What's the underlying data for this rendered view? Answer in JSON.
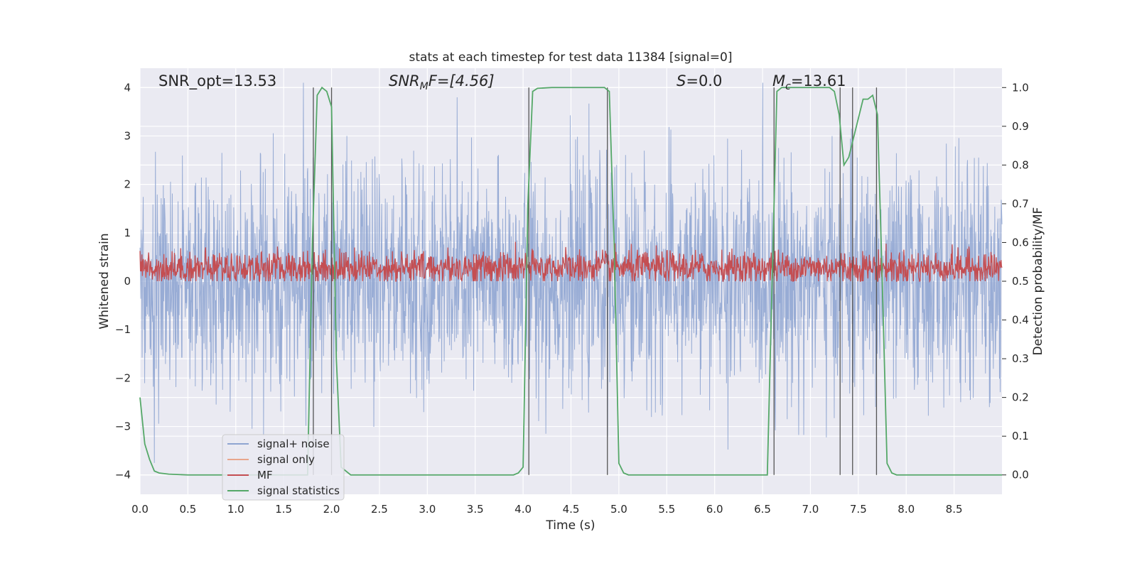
{
  "chart_data": {
    "type": "line",
    "title": "stats at each timestep for test data 11384 [signal=0]",
    "xlabel": "Time (s)",
    "ylabel": "Whitened strain",
    "ylabel_right": "Detection probability/MF",
    "xlim": [
      0,
      9.0
    ],
    "ylim": [
      -4.4,
      4.4
    ],
    "ylim_right": [
      -0.05,
      1.05
    ],
    "x_ticks": [
      "0.0",
      "0.5",
      "1.0",
      "1.5",
      "2.0",
      "2.5",
      "3.0",
      "3.5",
      "4.0",
      "4.5",
      "5.0",
      "5.5",
      "6.0",
      "6.5",
      "7.0",
      "7.5",
      "8.0",
      "8.5"
    ],
    "y_ticks": [
      "4",
      "3",
      "2",
      "1",
      "0",
      "−1",
      "−2",
      "−3",
      "−4"
    ],
    "y_right_ticks": [
      "1.0",
      "0.9",
      "0.8",
      "0.7",
      "0.6",
      "0.5",
      "0.4",
      "0.3",
      "0.2",
      "0.1",
      "0.0"
    ],
    "grid": true,
    "legend_position": "lower-left",
    "annotations": {
      "snr_opt": "SNR_opt=13.53",
      "snr_mf_main": "SNR",
      "snr_mf_sub": "M",
      "snr_mf_rest": "F=[4.56]",
      "s_main": "S",
      "s_rest": "=0.0",
      "mc_main": "M",
      "mc_sub": "c",
      "mc_rest": "=13.61"
    },
    "series": [
      {
        "name": "signal+ noise",
        "color": "#8fa5d1",
        "description_values": "random whitened noise, amplitude about ±2 to ±4"
      },
      {
        "name": "signal only",
        "color": "#e8a68c",
        "values": []
      },
      {
        "name": "MF",
        "color": "#c44e52",
        "description_values": "noisy band between 0 and 0.6 on right axis (centered near 0.53)"
      },
      {
        "name": "signal statistics",
        "color": "#55a868",
        "x": [
          0.0,
          0.05,
          0.1,
          0.15,
          0.2,
          0.3,
          0.5,
          1.0,
          1.5,
          1.75,
          1.8,
          1.85,
          1.9,
          1.95,
          2.0,
          2.05,
          2.1,
          2.2,
          3.0,
          3.9,
          3.95,
          4.0,
          4.05,
          4.1,
          4.15,
          4.3,
          4.8,
          4.85,
          4.9,
          4.95,
          5.0,
          5.05,
          5.1,
          6.55,
          6.6,
          6.65,
          6.7,
          6.75,
          7.2,
          7.25,
          7.3,
          7.35,
          7.4,
          7.45,
          7.5,
          7.55,
          7.6,
          7.65,
          7.7,
          7.75,
          7.8,
          7.85,
          7.9,
          8.0,
          9.0
        ],
        "values": [
          0.2,
          0.08,
          0.04,
          0.01,
          0.005,
          0.002,
          0.0,
          0.0,
          0.0,
          0.0,
          0.6,
          0.98,
          1.0,
          0.99,
          0.95,
          0.3,
          0.02,
          0.0,
          0.0,
          0.0,
          0.005,
          0.02,
          0.7,
          0.99,
          0.998,
          1.0,
          1.0,
          1.0,
          0.99,
          0.6,
          0.03,
          0.005,
          0.0,
          0.0,
          0.5,
          0.99,
          1.0,
          1.0,
          1.0,
          0.99,
          0.93,
          0.8,
          0.82,
          0.87,
          0.92,
          0.97,
          0.97,
          0.98,
          0.93,
          0.5,
          0.03,
          0.005,
          0.0,
          0.0,
          0.0
        ]
      }
    ],
    "vertical_lines_x": [
      1.81,
      2.0,
      4.06,
      4.88,
      6.62,
      7.31,
      7.44,
      7.69
    ]
  }
}
